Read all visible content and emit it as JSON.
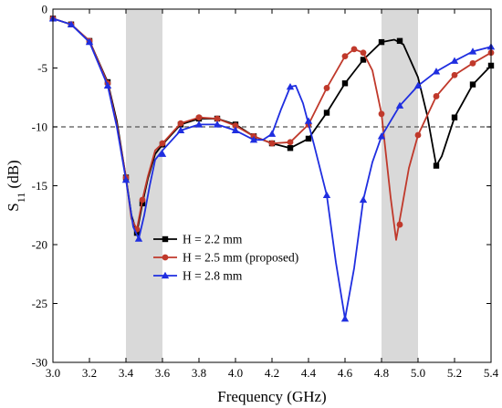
{
  "chart_data": {
    "type": "line",
    "xlabel": "Frequency (GHz)",
    "ylabel_main": "S",
    "ylabel_sub": "11",
    "ylabel_unit": " (dB)",
    "xlim": [
      3.0,
      5.4
    ],
    "ylim": [
      -30,
      0
    ],
    "xticks": [
      3.0,
      3.2,
      3.4,
      3.6,
      3.8,
      4.0,
      4.2,
      4.4,
      4.6,
      4.8,
      5.0,
      5.2,
      5.4
    ],
    "xtick_labels": [
      "3.0",
      "3.2",
      "3.4",
      "3.6",
      "3.8",
      "4.0",
      "4.2",
      "4.4",
      "4.6",
      "4.8",
      "5.0",
      "5.2",
      "5.4"
    ],
    "yticks": [
      0,
      -5,
      -10,
      -15,
      -20,
      -25,
      -30
    ],
    "ytick_labels": [
      "0",
      "-5",
      "-10",
      "-15",
      "-20",
      "-25",
      "-30"
    ],
    "shaded_bands": [
      [
        3.4,
        3.6
      ],
      [
        4.8,
        5.0
      ]
    ],
    "shade_color": "#d9d9d9",
    "reference_line": {
      "y": -10,
      "style": "dashed",
      "color": "#555555"
    },
    "grid": false,
    "legend_position": "lower-left",
    "series": [
      {
        "name": "H = 2.2 mm",
        "color": "#000000",
        "marker": "square",
        "curve": [
          [
            3.0,
            -0.8
          ],
          [
            3.1,
            -1.3
          ],
          [
            3.2,
            -2.7
          ],
          [
            3.3,
            -6.2
          ],
          [
            3.35,
            -9.5
          ],
          [
            3.4,
            -14.3
          ],
          [
            3.43,
            -17.5
          ],
          [
            3.46,
            -19.0
          ],
          [
            3.49,
            -16.5
          ],
          [
            3.52,
            -14.4
          ],
          [
            3.56,
            -12.3
          ],
          [
            3.6,
            -11.5
          ],
          [
            3.7,
            -9.8
          ],
          [
            3.8,
            -9.3
          ],
          [
            3.9,
            -9.3
          ],
          [
            4.0,
            -9.8
          ],
          [
            4.1,
            -10.8
          ],
          [
            4.2,
            -11.4
          ],
          [
            4.3,
            -11.8
          ],
          [
            4.4,
            -11.0
          ],
          [
            4.5,
            -8.8
          ],
          [
            4.6,
            -6.3
          ],
          [
            4.7,
            -4.3
          ],
          [
            4.8,
            -2.8
          ],
          [
            4.87,
            -2.6
          ],
          [
            4.92,
            -3.0
          ],
          [
            5.0,
            -5.8
          ],
          [
            5.05,
            -9.0
          ],
          [
            5.1,
            -13.3
          ],
          [
            5.13,
            -12.5
          ],
          [
            5.2,
            -9.2
          ],
          [
            5.3,
            -6.4
          ],
          [
            5.4,
            -4.8
          ]
        ],
        "markers": [
          [
            3.0,
            -0.8
          ],
          [
            3.1,
            -1.3
          ],
          [
            3.2,
            -2.7
          ],
          [
            3.3,
            -6.2
          ],
          [
            3.4,
            -14.3
          ],
          [
            3.46,
            -19.0
          ],
          [
            3.49,
            -16.5
          ],
          [
            3.6,
            -11.5
          ],
          [
            3.7,
            -9.8
          ],
          [
            3.8,
            -9.3
          ],
          [
            3.9,
            -9.3
          ],
          [
            4.0,
            -9.8
          ],
          [
            4.1,
            -10.8
          ],
          [
            4.2,
            -11.4
          ],
          [
            4.3,
            -11.8
          ],
          [
            4.4,
            -11.0
          ],
          [
            4.5,
            -8.8
          ],
          [
            4.6,
            -6.3
          ],
          [
            4.7,
            -4.3
          ],
          [
            4.8,
            -2.8
          ],
          [
            4.9,
            -2.7
          ],
          [
            5.1,
            -13.3
          ],
          [
            5.2,
            -9.2
          ],
          [
            5.3,
            -6.4
          ],
          [
            5.4,
            -4.8
          ]
        ]
      },
      {
        "name": "H = 2.5 mm (proposed)",
        "color": "#c0392b",
        "marker": "circle",
        "curve": [
          [
            3.0,
            -0.8
          ],
          [
            3.1,
            -1.3
          ],
          [
            3.2,
            -2.7
          ],
          [
            3.3,
            -6.3
          ],
          [
            3.35,
            -9.8
          ],
          [
            3.4,
            -14.3
          ],
          [
            3.43,
            -17.8
          ],
          [
            3.46,
            -18.7
          ],
          [
            3.49,
            -16.2
          ],
          [
            3.52,
            -14.2
          ],
          [
            3.56,
            -12.0
          ],
          [
            3.6,
            -11.4
          ],
          [
            3.7,
            -9.7
          ],
          [
            3.8,
            -9.2
          ],
          [
            3.9,
            -9.3
          ],
          [
            4.0,
            -9.9
          ],
          [
            4.1,
            -10.8
          ],
          [
            4.2,
            -11.4
          ],
          [
            4.3,
            -11.3
          ],
          [
            4.4,
            -9.8
          ],
          [
            4.5,
            -6.7
          ],
          [
            4.6,
            -4.0
          ],
          [
            4.65,
            -3.4
          ],
          [
            4.7,
            -3.7
          ],
          [
            4.75,
            -5.2
          ],
          [
            4.8,
            -8.9
          ],
          [
            4.85,
            -16.0
          ],
          [
            4.88,
            -19.6
          ],
          [
            4.91,
            -17.0
          ],
          [
            4.95,
            -13.5
          ],
          [
            5.0,
            -10.7
          ],
          [
            5.1,
            -7.4
          ],
          [
            5.2,
            -5.6
          ],
          [
            5.3,
            -4.6
          ],
          [
            5.4,
            -3.7
          ]
        ],
        "markers": [
          [
            3.0,
            -0.8
          ],
          [
            3.1,
            -1.3
          ],
          [
            3.2,
            -2.7
          ],
          [
            3.3,
            -6.3
          ],
          [
            3.4,
            -14.3
          ],
          [
            3.46,
            -18.7
          ],
          [
            3.49,
            -16.2
          ],
          [
            3.6,
            -11.4
          ],
          [
            3.7,
            -9.7
          ],
          [
            3.8,
            -9.2
          ],
          [
            3.9,
            -9.3
          ],
          [
            4.0,
            -9.9
          ],
          [
            4.1,
            -10.8
          ],
          [
            4.2,
            -11.4
          ],
          [
            4.3,
            -11.3
          ],
          [
            4.4,
            -9.8
          ],
          [
            4.5,
            -6.7
          ],
          [
            4.6,
            -4.0
          ],
          [
            4.65,
            -3.4
          ],
          [
            4.7,
            -3.7
          ],
          [
            4.8,
            -8.9
          ],
          [
            4.9,
            -18.3
          ],
          [
            5.0,
            -10.7
          ],
          [
            5.1,
            -7.4
          ],
          [
            5.2,
            -5.6
          ],
          [
            5.3,
            -4.6
          ],
          [
            5.4,
            -3.7
          ]
        ]
      },
      {
        "name": "H = 2.8 mm",
        "color": "#1f2ee0",
        "marker": "triangle",
        "curve": [
          [
            3.0,
            -0.8
          ],
          [
            3.1,
            -1.3
          ],
          [
            3.2,
            -2.8
          ],
          [
            3.3,
            -6.5
          ],
          [
            3.35,
            -10.0
          ],
          [
            3.4,
            -14.5
          ],
          [
            3.44,
            -18.5
          ],
          [
            3.47,
            -19.5
          ],
          [
            3.5,
            -17.5
          ],
          [
            3.53,
            -15.0
          ],
          [
            3.56,
            -12.8
          ],
          [
            3.6,
            -12.0
          ],
          [
            3.7,
            -10.3
          ],
          [
            3.8,
            -9.8
          ],
          [
            3.9,
            -9.8
          ],
          [
            4.0,
            -10.3
          ],
          [
            4.1,
            -11.1
          ],
          [
            4.15,
            -11.1
          ],
          [
            4.2,
            -10.6
          ],
          [
            4.25,
            -8.5
          ],
          [
            4.3,
            -6.6
          ],
          [
            4.33,
            -6.5
          ],
          [
            4.37,
            -8.0
          ],
          [
            4.43,
            -11.5
          ],
          [
            4.5,
            -15.8
          ],
          [
            4.55,
            -21.5
          ],
          [
            4.6,
            -26.3
          ],
          [
            4.65,
            -22.0
          ],
          [
            4.7,
            -16.2
          ],
          [
            4.75,
            -13.0
          ],
          [
            4.8,
            -10.8
          ],
          [
            4.9,
            -8.2
          ],
          [
            5.0,
            -6.5
          ],
          [
            5.1,
            -5.3
          ],
          [
            5.2,
            -4.4
          ],
          [
            5.3,
            -3.6
          ],
          [
            5.4,
            -3.2
          ]
        ],
        "markers": [
          [
            3.0,
            -0.8
          ],
          [
            3.1,
            -1.3
          ],
          [
            3.2,
            -2.8
          ],
          [
            3.3,
            -6.5
          ],
          [
            3.4,
            -14.5
          ],
          [
            3.47,
            -19.5
          ],
          [
            3.6,
            -12.3
          ],
          [
            3.7,
            -10.3
          ],
          [
            3.8,
            -9.8
          ],
          [
            3.9,
            -9.8
          ],
          [
            4.0,
            -10.3
          ],
          [
            4.1,
            -11.1
          ],
          [
            4.2,
            -10.6
          ],
          [
            4.3,
            -6.6
          ],
          [
            4.4,
            -9.5
          ],
          [
            4.5,
            -15.8
          ],
          [
            4.6,
            -26.3
          ],
          [
            4.7,
            -16.2
          ],
          [
            4.8,
            -10.8
          ],
          [
            4.9,
            -8.2
          ],
          [
            5.0,
            -6.5
          ],
          [
            5.1,
            -5.3
          ],
          [
            5.2,
            -4.4
          ],
          [
            5.3,
            -3.6
          ],
          [
            5.4,
            -3.2
          ]
        ]
      }
    ]
  }
}
